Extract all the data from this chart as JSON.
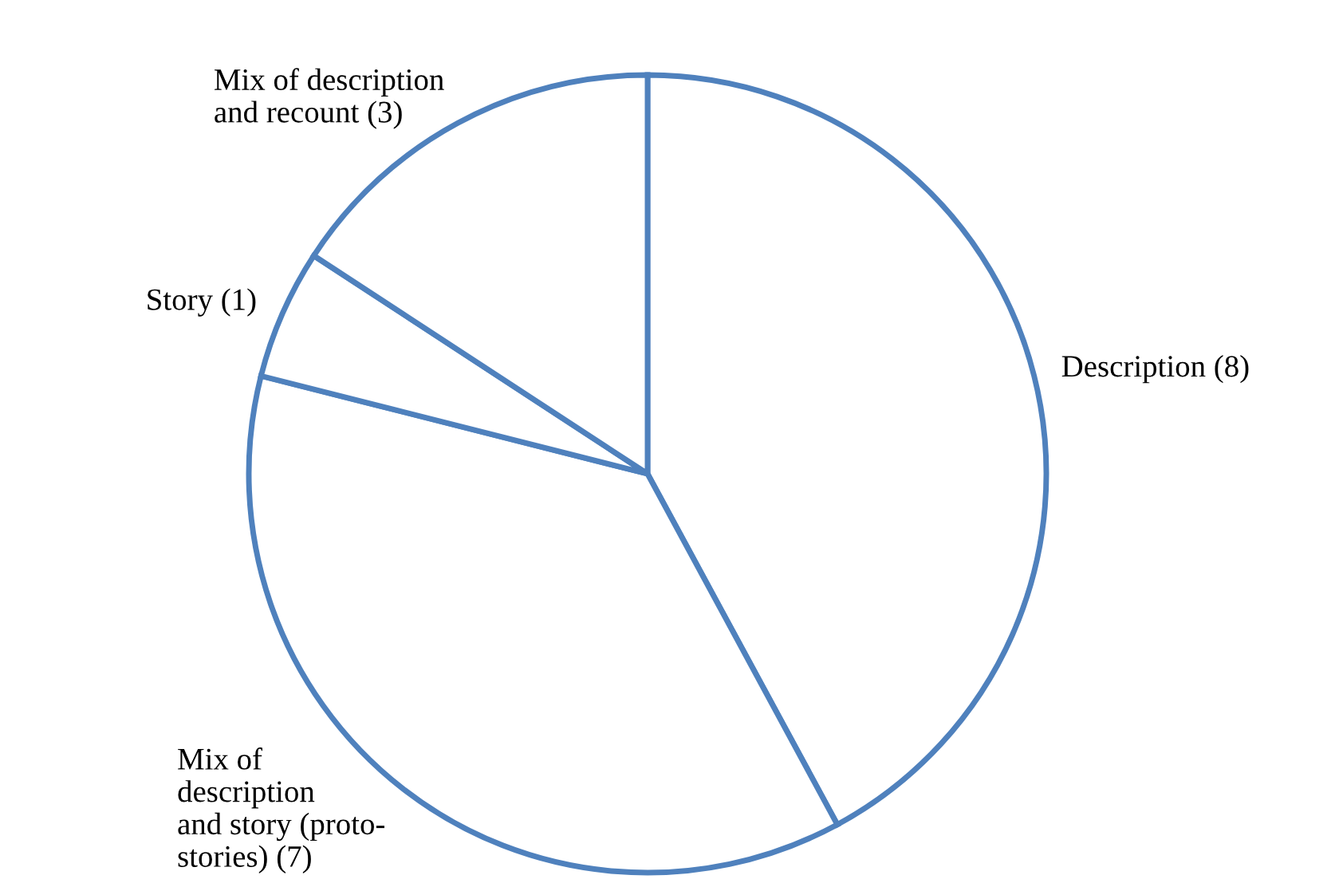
{
  "chart_data": {
    "type": "pie",
    "categories": [
      "Description (8)",
      "Mix of\ndescription\nand story (proto-\nstories) (7)",
      "Story (1)",
      "Mix of description\nand recount (3)"
    ],
    "values": [
      8,
      7,
      1,
      3
    ],
    "colors": [
      "#ffffff",
      "#ffffff",
      "#ffffff",
      "#ffffff"
    ]
  }
}
